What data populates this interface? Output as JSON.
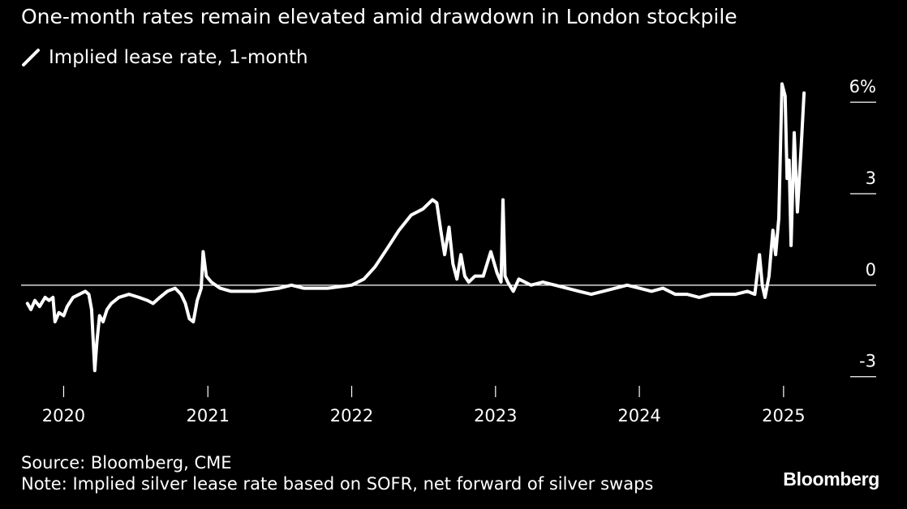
{
  "subtitle": "One-month rates remain elevated amid drawdown in London stockpile",
  "source": "Source: Bloomberg, CME",
  "note": "Note: Implied silver lease rate based on SOFR, net forward of silver swaps",
  "brand": "Bloomberg",
  "colors": {
    "background": "#000000",
    "line": "#ffffff",
    "text": "#ffffff"
  },
  "chart_data": {
    "type": "line",
    "ylim": [
      -3.3,
      6.8
    ],
    "y_ticks": [
      {
        "value": -3,
        "label": "-3"
      },
      {
        "value": 0,
        "label": "0"
      },
      {
        "value": 3,
        "label": "3"
      },
      {
        "value": 6,
        "label": "6%"
      }
    ],
    "x_ticks": [
      {
        "value": "2020-01-01",
        "label": "2020"
      },
      {
        "value": "2021-01-01",
        "label": "2021"
      },
      {
        "value": "2022-01-01",
        "label": "2022"
      },
      {
        "value": "2023-01-01",
        "label": "2023"
      },
      {
        "value": "2024-01-01",
        "label": "2024"
      },
      {
        "value": "2025-01-01",
        "label": "2025"
      }
    ],
    "xlim": [
      "2019-09-15",
      "2025-06-15"
    ],
    "zero_line": true,
    "series": [
      {
        "name": "Implied lease rate, 1-month",
        "points": [
          [
            "2019-10-01",
            -0.6
          ],
          [
            "2019-10-10",
            -0.8
          ],
          [
            "2019-10-20",
            -0.5
          ],
          [
            "2019-11-01",
            -0.7
          ],
          [
            "2019-11-15",
            -0.4
          ],
          [
            "2019-11-25",
            -0.5
          ],
          [
            "2019-12-05",
            -0.4
          ],
          [
            "2019-12-10",
            -1.2
          ],
          [
            "2019-12-20",
            -0.9
          ],
          [
            "2020-01-01",
            -1.0
          ],
          [
            "2020-01-10",
            -0.7
          ],
          [
            "2020-01-25",
            -0.4
          ],
          [
            "2020-02-10",
            -0.3
          ],
          [
            "2020-02-25",
            -0.2
          ],
          [
            "2020-03-05",
            -0.3
          ],
          [
            "2020-03-12",
            -0.8
          ],
          [
            "2020-03-20",
            -2.8
          ],
          [
            "2020-03-25",
            -1.9
          ],
          [
            "2020-04-01",
            -1.0
          ],
          [
            "2020-04-10",
            -1.2
          ],
          [
            "2020-04-20",
            -0.8
          ],
          [
            "2020-05-01",
            -0.6
          ],
          [
            "2020-05-20",
            -0.4
          ],
          [
            "2020-06-15",
            -0.3
          ],
          [
            "2020-07-10",
            -0.4
          ],
          [
            "2020-08-01",
            -0.5
          ],
          [
            "2020-08-15",
            -0.6
          ],
          [
            "2020-09-01",
            -0.4
          ],
          [
            "2020-09-20",
            -0.2
          ],
          [
            "2020-10-10",
            -0.1
          ],
          [
            "2020-10-25",
            -0.3
          ],
          [
            "2020-11-05",
            -0.6
          ],
          [
            "2020-11-15",
            -1.1
          ],
          [
            "2020-11-25",
            -1.2
          ],
          [
            "2020-12-05",
            -0.5
          ],
          [
            "2020-12-15",
            -0.1
          ],
          [
            "2020-12-20",
            1.1
          ],
          [
            "2020-12-28",
            0.3
          ],
          [
            "2021-01-10",
            0.1
          ],
          [
            "2021-02-01",
            -0.1
          ],
          [
            "2021-03-01",
            -0.2
          ],
          [
            "2021-05-01",
            -0.2
          ],
          [
            "2021-07-01",
            -0.1
          ],
          [
            "2021-08-01",
            0.0
          ],
          [
            "2021-09-01",
            -0.1
          ],
          [
            "2021-11-01",
            -0.1
          ],
          [
            "2022-01-01",
            0.0
          ],
          [
            "2022-02-01",
            0.2
          ],
          [
            "2022-03-01",
            0.6
          ],
          [
            "2022-04-01",
            1.2
          ],
          [
            "2022-05-01",
            1.8
          ],
          [
            "2022-06-01",
            2.3
          ],
          [
            "2022-07-01",
            2.5
          ],
          [
            "2022-07-25",
            2.8
          ],
          [
            "2022-08-05",
            2.7
          ],
          [
            "2022-08-15",
            1.8
          ],
          [
            "2022-08-25",
            1.0
          ],
          [
            "2022-09-05",
            1.9
          ],
          [
            "2022-09-15",
            0.7
          ],
          [
            "2022-09-25",
            0.2
          ],
          [
            "2022-10-05",
            1.0
          ],
          [
            "2022-10-15",
            0.3
          ],
          [
            "2022-10-25",
            0.1
          ],
          [
            "2022-11-10",
            0.3
          ],
          [
            "2022-12-01",
            0.3
          ],
          [
            "2022-12-20",
            1.1
          ],
          [
            "2023-01-05",
            0.4
          ],
          [
            "2023-01-15",
            0.1
          ],
          [
            "2023-01-20",
            2.8
          ],
          [
            "2023-01-25",
            0.3
          ],
          [
            "2023-02-01",
            0.1
          ],
          [
            "2023-02-15",
            -0.2
          ],
          [
            "2023-03-01",
            0.2
          ],
          [
            "2023-04-01",
            0.0
          ],
          [
            "2023-05-01",
            0.1
          ],
          [
            "2023-06-01",
            0.0
          ],
          [
            "2023-07-01",
            -0.1
          ],
          [
            "2023-08-01",
            -0.2
          ],
          [
            "2023-09-01",
            -0.3
          ],
          [
            "2023-10-01",
            -0.2
          ],
          [
            "2023-11-01",
            -0.1
          ],
          [
            "2023-12-01",
            0.0
          ],
          [
            "2024-01-01",
            -0.1
          ],
          [
            "2024-02-01",
            -0.2
          ],
          [
            "2024-03-01",
            -0.1
          ],
          [
            "2024-04-01",
            -0.3
          ],
          [
            "2024-05-01",
            -0.3
          ],
          [
            "2024-06-01",
            -0.4
          ],
          [
            "2024-07-01",
            -0.3
          ],
          [
            "2024-08-01",
            -0.3
          ],
          [
            "2024-09-01",
            -0.3
          ],
          [
            "2024-10-01",
            -0.2
          ],
          [
            "2024-10-20",
            -0.3
          ],
          [
            "2024-11-01",
            1.0
          ],
          [
            "2024-11-08",
            0.0
          ],
          [
            "2024-11-15",
            -0.4
          ],
          [
            "2024-11-25",
            0.3
          ],
          [
            "2024-12-05",
            1.8
          ],
          [
            "2024-12-12",
            1.0
          ],
          [
            "2024-12-20",
            2.2
          ],
          [
            "2024-12-28",
            6.6
          ],
          [
            "2025-01-05",
            6.2
          ],
          [
            "2025-01-10",
            3.5
          ],
          [
            "2025-01-15",
            4.1
          ],
          [
            "2025-01-20",
            1.3
          ],
          [
            "2025-01-28",
            5.0
          ],
          [
            "2025-02-05",
            2.4
          ],
          [
            "2025-02-15",
            4.6
          ],
          [
            "2025-02-22",
            6.3
          ]
        ]
      }
    ]
  }
}
